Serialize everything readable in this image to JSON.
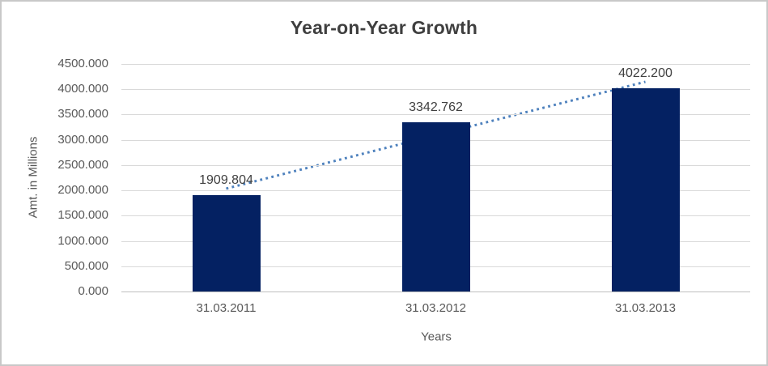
{
  "chart_data": {
    "type": "bar",
    "title": "Year-on-Year Growth",
    "xlabel": "Years",
    "ylabel": "Amt. in Millions",
    "categories": [
      "31.03.2011",
      "31.03.2012",
      "31.03.2013"
    ],
    "values": [
      1909.804,
      3342.762,
      4022.2
    ],
    "data_labels": [
      "1909.804",
      "3342.762",
      "4022.200"
    ],
    "ylim": [
      0,
      4500
    ],
    "yticks": [
      0,
      500,
      1000,
      1500,
      2000,
      2500,
      3000,
      3500,
      4000,
      4500
    ],
    "ytick_labels": [
      "0.000",
      "500.000",
      "1000.000",
      "1500.000",
      "2000.000",
      "2500.000",
      "3000.000",
      "3500.000",
      "4000.000",
      "4500.000"
    ],
    "grid": true,
    "legend": "none",
    "trendline": {
      "type": "linear",
      "style": "dotted"
    },
    "colors": {
      "bar": "#042162",
      "gridline": "#d9d9d9",
      "axis_line": "#bfbfbf",
      "trendline": "#4e81bd",
      "title_text": "#3f3f3f",
      "tick_text": "#595959",
      "data_label_text": "#404040"
    }
  }
}
